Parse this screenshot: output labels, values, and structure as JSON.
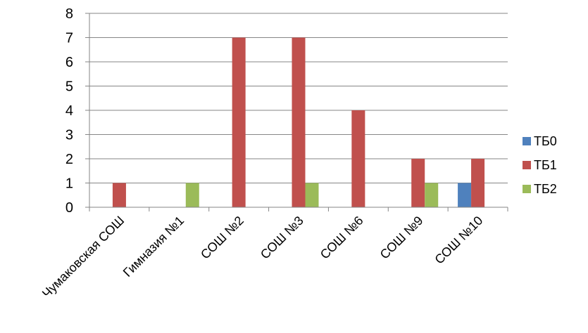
{
  "chart_data": {
    "type": "bar",
    "categories": [
      "Чумаковская СОШ",
      "Гимназия №1",
      "СОШ №2",
      "СОШ №3",
      "СОШ №6",
      "СОШ №9",
      "СОШ №10"
    ],
    "series": [
      {
        "name": "ТБ0",
        "color": "#4F81BD",
        "values": [
          0,
          0,
          0,
          0,
          0,
          0,
          1
        ]
      },
      {
        "name": "ТБ1",
        "color": "#C0504D",
        "values": [
          1,
          0,
          7,
          7,
          4,
          2,
          2
        ]
      },
      {
        "name": "ТБ2",
        "color": "#9BBB59",
        "values": [
          0,
          1,
          0,
          1,
          0,
          1,
          0
        ]
      }
    ],
    "yticks": [
      "0",
      "1",
      "2",
      "3",
      "4",
      "5",
      "6",
      "7",
      "8"
    ],
    "ylim": [
      0,
      8
    ],
    "grid": true,
    "legend": "right",
    "title": "",
    "xlabel": "",
    "ylabel": ""
  }
}
